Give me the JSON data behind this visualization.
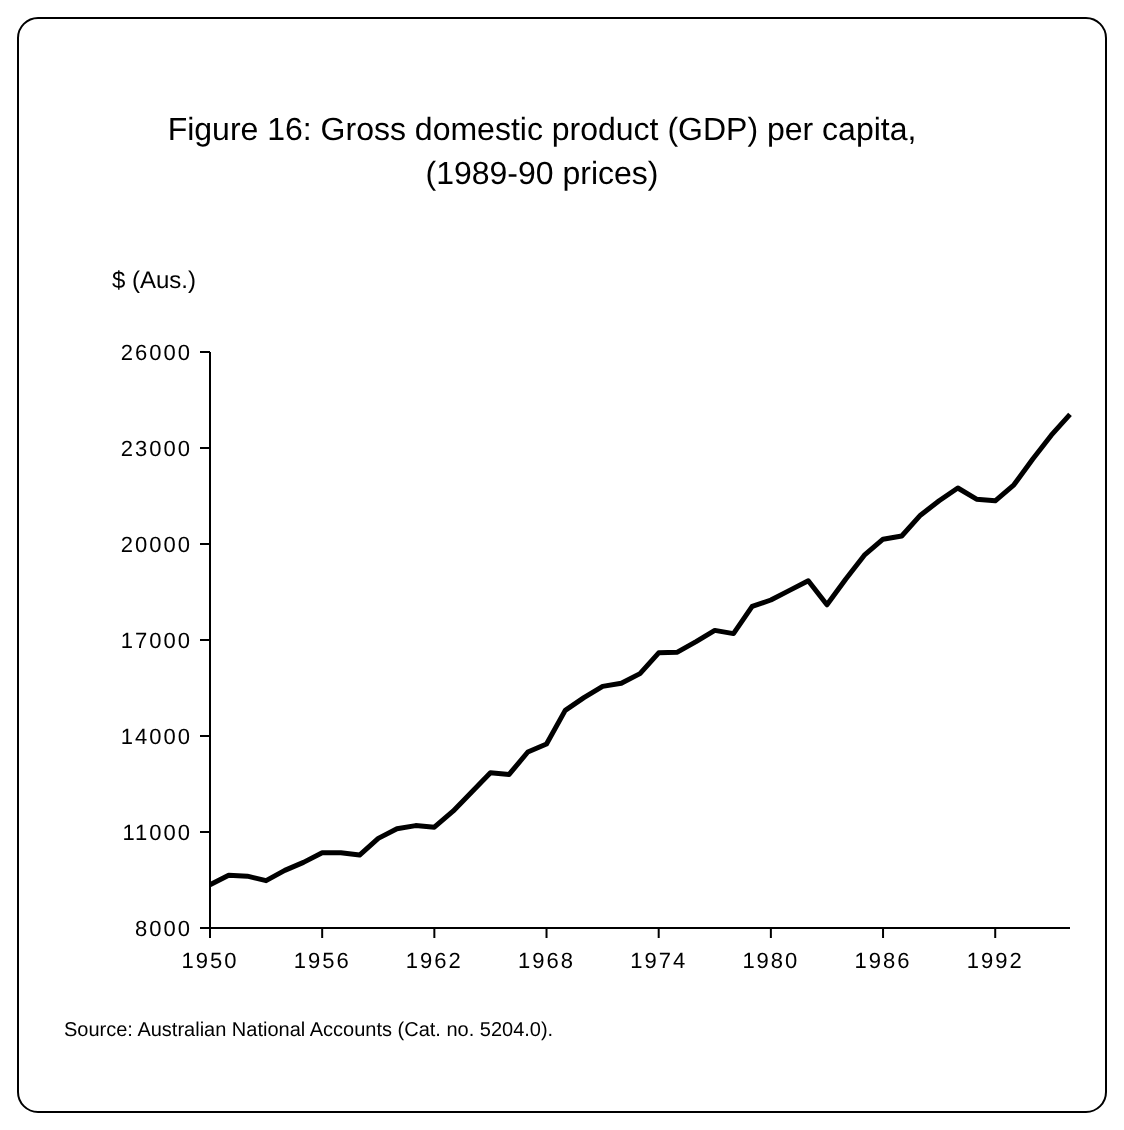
{
  "chart_data": {
    "type": "line",
    "title": "Figure 16: Gross domestic product (GDP) per capita,\n(1989-90 prices)",
    "ylabel": "$ (Aus.)",
    "x": [
      1950,
      1951,
      1952,
      1953,
      1954,
      1955,
      1956,
      1957,
      1958,
      1959,
      1960,
      1961,
      1962,
      1963,
      1964,
      1965,
      1966,
      1967,
      1968,
      1969,
      1970,
      1971,
      1972,
      1973,
      1974,
      1975,
      1976,
      1977,
      1978,
      1979,
      1980,
      1981,
      1982,
      1983,
      1984,
      1985,
      1986,
      1987,
      1988,
      1989,
      1990,
      1991,
      1992,
      1993,
      1994,
      1995,
      1996
    ],
    "series": [
      {
        "color": "#000000",
        "values": [
          9350,
          9650,
          9620,
          9480,
          9800,
          10050,
          10350,
          10350,
          10280,
          10800,
          11100,
          11200,
          11150,
          11650,
          12250,
          12850,
          12800,
          13500,
          13750,
          14800,
          15200,
          15550,
          15650,
          15950,
          16600,
          16620,
          16950,
          17300,
          17200,
          18050,
          18250,
          18550,
          18850,
          18100,
          18900,
          19650,
          20150,
          20250,
          20900,
          21350,
          21750,
          21400,
          21350,
          21850,
          22650,
          23400,
          24050
        ]
      }
    ],
    "xlim": [
      1950,
      1996
    ],
    "xticks": [
      1950,
      1956,
      1962,
      1968,
      1974,
      1980,
      1986,
      1992
    ],
    "ylim": [
      8000,
      26000
    ],
    "yticks": [
      8000,
      11000,
      14000,
      17000,
      20000,
      23000,
      26000
    ],
    "marker": "none",
    "line_style": "solid",
    "annotations": [
      "Source: Australian National Accounts (Cat. no. 5204.0)."
    ]
  }
}
